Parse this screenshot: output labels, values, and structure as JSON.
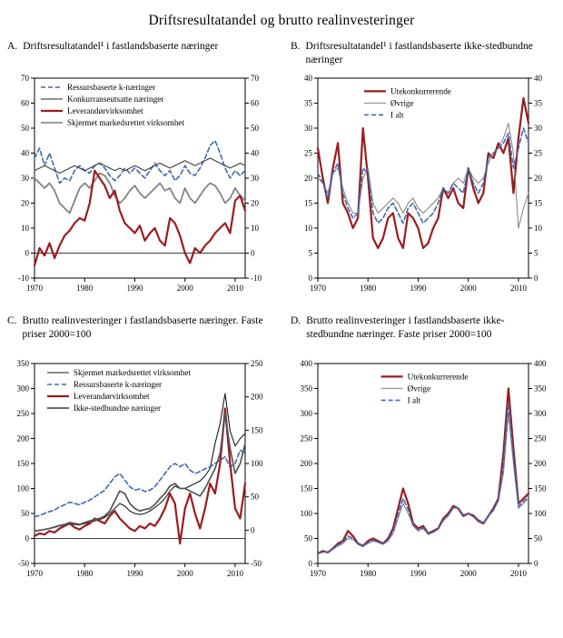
{
  "title": "Driftsresultatandel og brutto realinvesteringer",
  "colors": {
    "red": "#9B1B1E",
    "blue": "#4169B4",
    "gray": "#808080",
    "black": "#2A2A2A",
    "darkgray": "#555555"
  },
  "chart_data": [
    {
      "type": "line",
      "panel_label": "A.",
      "title": "Driftsresultatandel¹ i fastlandsbaserte næringer",
      "x_start": 1970,
      "x_range": [
        1970,
        2012
      ],
      "xticks": [
        1970,
        1980,
        1990,
        2000,
        2010
      ],
      "ylim": [
        -10,
        70
      ],
      "yticks": [
        -10,
        0,
        10,
        20,
        30,
        40,
        50,
        60,
        70
      ],
      "zeroline": true,
      "grid": false,
      "legend": {
        "x": 0.03,
        "y": 0.0
      },
      "series": [
        {
          "name": "Ressursbaserte k-næringer",
          "color": "#4169B4",
          "width": 1.6,
          "dash": "5,3",
          "values": [
            38,
            42,
            35,
            40,
            34,
            28,
            30,
            29,
            33,
            35,
            33,
            32,
            35,
            36,
            34,
            31,
            29,
            31,
            34,
            32,
            34,
            32,
            30,
            33,
            36,
            33,
            31,
            33,
            29,
            31,
            35,
            32,
            31,
            34,
            38,
            43,
            45,
            40,
            34,
            30,
            33,
            31,
            33
          ]
        },
        {
          "name": "Konkurranseutsatte næringer",
          "color": "#808080",
          "width": 1.7,
          "values": [
            30,
            28,
            26,
            28,
            25,
            20,
            18,
            16,
            21,
            26,
            28,
            26,
            29,
            32,
            31,
            28,
            23,
            20,
            22,
            25,
            27,
            24,
            22,
            24,
            26,
            28,
            25,
            26,
            22,
            20,
            26,
            22,
            20,
            23,
            26,
            28,
            27,
            24,
            20,
            22,
            26,
            23,
            21
          ]
        },
        {
          "name": "Leverandørvirksomhet",
          "color": "#9B1B1E",
          "width": 2.2,
          "values": [
            -5,
            2,
            -1,
            4,
            -2,
            3,
            7,
            9,
            12,
            14,
            13,
            20,
            33,
            30,
            27,
            22,
            25,
            17,
            12,
            10,
            8,
            11,
            5,
            8,
            10,
            5,
            3,
            14,
            12,
            7,
            0,
            -4,
            2,
            0,
            3,
            5,
            8,
            10,
            12,
            8,
            21,
            23,
            17
          ]
        },
        {
          "name": "Skjermet markedsrettet virksomhet",
          "color": "#3A3A3A",
          "width": 1,
          "values": [
            33,
            34,
            35,
            34,
            33,
            32,
            33,
            34,
            35,
            34,
            33,
            34,
            35,
            36,
            35,
            34,
            33,
            34,
            33,
            34,
            35,
            34,
            33,
            34,
            35,
            36,
            35,
            34,
            35,
            36,
            37,
            36,
            35,
            36,
            37,
            38,
            37,
            36,
            35,
            34,
            35,
            36,
            35
          ]
        }
      ]
    },
    {
      "type": "line",
      "panel_label": "B.",
      "title": "Driftsresultatandel¹ i fastlandsbaserte ikke-stedbundne næringer",
      "x_start": 1970,
      "x_range": [
        1970,
        2012
      ],
      "xticks": [
        1970,
        1980,
        1990,
        2000,
        2010
      ],
      "ylim": [
        0,
        40
      ],
      "yticks": [
        0,
        5,
        10,
        15,
        20,
        25,
        30,
        35,
        40
      ],
      "zeroline": false,
      "grid": false,
      "legend": {
        "x": 0.22,
        "y": 0.02
      },
      "series": [
        {
          "name": "Utekonkurrerende",
          "color": "#9B1B1E",
          "width": 2.2,
          "values": [
            26,
            20,
            15,
            22,
            27,
            15,
            13,
            10,
            12,
            30,
            20,
            8,
            6,
            8,
            12,
            13,
            8,
            6,
            13,
            12,
            10,
            6,
            7,
            10,
            12,
            18,
            16,
            18,
            15,
            14,
            22,
            18,
            15,
            17,
            25,
            24,
            27,
            25,
            28,
            17,
            28,
            36,
            31
          ]
        },
        {
          "name": "Øvrige",
          "color": "#808080",
          "width": 1,
          "values": [
            20,
            19,
            17,
            21,
            22,
            18,
            15,
            13,
            13,
            20,
            22,
            15,
            13,
            14,
            15,
            16,
            15,
            13,
            15,
            16,
            14,
            13,
            14,
            15,
            16,
            18,
            17,
            19,
            20,
            19,
            22,
            20,
            19,
            20,
            23,
            25,
            26,
            28,
            31,
            25,
            10,
            14,
            17
          ]
        },
        {
          "name": "I alt",
          "color": "#4169B4",
          "width": 1.6,
          "dash": "5,3",
          "values": [
            21,
            19,
            16,
            21,
            23,
            17,
            14,
            12,
            13,
            22,
            21,
            13,
            11,
            12,
            14,
            15,
            13,
            11,
            14,
            15,
            13,
            11,
            12,
            13,
            15,
            18,
            17,
            19,
            18,
            17,
            22,
            19,
            17,
            19,
            24,
            25,
            26,
            27,
            29,
            22,
            26,
            30,
            27
          ]
        }
      ]
    },
    {
      "type": "line",
      "panel_label": "C.",
      "title": "Brutto realinvesteringer i fastlandsbaserte næringer. Faste priser 2000=100",
      "x_start": 1970,
      "x_range": [
        1970,
        2012
      ],
      "xticks": [
        1970,
        1980,
        1990,
        2000,
        2010
      ],
      "ylim": [
        -50,
        350
      ],
      "yticks": [
        -50,
        0,
        50,
        100,
        150,
        200,
        250,
        300,
        350
      ],
      "ylim_right": [
        -50,
        250
      ],
      "yticks_right": [
        -50,
        0,
        50,
        100,
        150,
        200,
        250
      ],
      "zeroline": true,
      "grid": false,
      "legend": {
        "x": 0.06,
        "y": 0.0
      },
      "series": [
        {
          "name": "Skjermet markedsrettet virksomhet",
          "color": "#1A1A1A",
          "width": 1.1,
          "values": [
            15,
            17,
            18,
            20,
            22,
            25,
            27,
            30,
            28,
            27,
            30,
            32,
            35,
            38,
            42,
            50,
            60,
            70,
            65,
            55,
            50,
            48,
            50,
            55,
            62,
            70,
            80,
            95,
            105,
            100,
            100,
            105,
            110,
            115,
            125,
            140,
            190,
            230,
            290,
            215,
            185,
            200,
            210
          ]
        },
        {
          "name": "Ressursbaserte k-næringer",
          "color": "#4169B4",
          "width": 1.6,
          "dash": "5,3",
          "axis": "right",
          "values": [
            20,
            22,
            25,
            28,
            30,
            35,
            38,
            42,
            40,
            38,
            42,
            45,
            50,
            55,
            60,
            70,
            80,
            85,
            75,
            65,
            60,
            62,
            58,
            60,
            65,
            75,
            85,
            95,
            100,
            95,
            100,
            90,
            85,
            88,
            92,
            95,
            100,
            105,
            110,
            95,
            100,
            120,
            115
          ]
        },
        {
          "name": "Leverandørvirksomhet",
          "color": "#9B1B1E",
          "width": 2.2,
          "values": [
            5,
            10,
            8,
            15,
            12,
            20,
            25,
            30,
            22,
            18,
            25,
            30,
            40,
            35,
            30,
            45,
            55,
            40,
            30,
            20,
            15,
            25,
            20,
            30,
            25,
            40,
            60,
            90,
            70,
            -10,
            60,
            90,
            50,
            20,
            60,
            110,
            90,
            150,
            260,
            150,
            60,
            40,
            110
          ]
        },
        {
          "name": "Ikke-stedbundne næringer",
          "color": "#555555",
          "width": 1.7,
          "values": [
            15,
            16,
            18,
            20,
            23,
            26,
            28,
            32,
            30,
            28,
            32,
            35,
            38,
            40,
            45,
            55,
            75,
            95,
            90,
            70,
            60,
            55,
            58,
            60,
            68,
            80,
            90,
            105,
            110,
            100,
            100,
            95,
            90,
            85,
            100,
            120,
            140,
            170,
            250,
            180,
            130,
            150,
            190
          ]
        }
      ]
    },
    {
      "type": "line",
      "panel_label": "D.",
      "title": "Brutto realinvesteringer i fastlandsbaserte ikke-stedbundne næringer. Faste priser 2000=100",
      "x_start": 1970,
      "x_range": [
        1970,
        2012
      ],
      "xticks": [
        1970,
        1980,
        1990,
        2000,
        2010
      ],
      "ylim": [
        0,
        400
      ],
      "yticks": [
        0,
        50,
        100,
        150,
        200,
        250,
        300,
        350,
        400
      ],
      "zeroline": false,
      "grid": false,
      "legend": {
        "x": 0.3,
        "y": 0.02
      },
      "series": [
        {
          "name": "Utekonkurrerende",
          "color": "#9B1B1E",
          "width": 2.2,
          "values": [
            20,
            25,
            22,
            30,
            40,
            45,
            65,
            55,
            40,
            35,
            45,
            50,
            45,
            40,
            50,
            70,
            110,
            150,
            120,
            80,
            70,
            75,
            60,
            65,
            70,
            90,
            100,
            115,
            110,
            95,
            100,
            95,
            85,
            80,
            95,
            110,
            130,
            220,
            350,
            230,
            120,
            130,
            140
          ]
        },
        {
          "name": "Øvrige",
          "color": "#808080",
          "width": 1,
          "values": [
            20,
            22,
            24,
            28,
            35,
            40,
            50,
            48,
            38,
            34,
            40,
            45,
            42,
            38,
            45,
            60,
            90,
            120,
            100,
            75,
            65,
            70,
            58,
            62,
            68,
            85,
            95,
            110,
            112,
            98,
            100,
            98,
            88,
            82,
            95,
            105,
            125,
            180,
            300,
            200,
            110,
            120,
            130
          ]
        },
        {
          "name": "I alt",
          "color": "#4169B4",
          "width": 1.6,
          "dash": "5,3",
          "values": [
            20,
            23,
            23,
            29,
            37,
            42,
            55,
            50,
            39,
            34,
            42,
            47,
            43,
            39,
            47,
            64,
            98,
            130,
            108,
            77,
            67,
            72,
            59,
            63,
            69,
            87,
            97,
            112,
            111,
            97,
            100,
            97,
            87,
            81,
            95,
            107,
            127,
            195,
            320,
            210,
            114,
            124,
            135
          ]
        }
      ]
    }
  ]
}
